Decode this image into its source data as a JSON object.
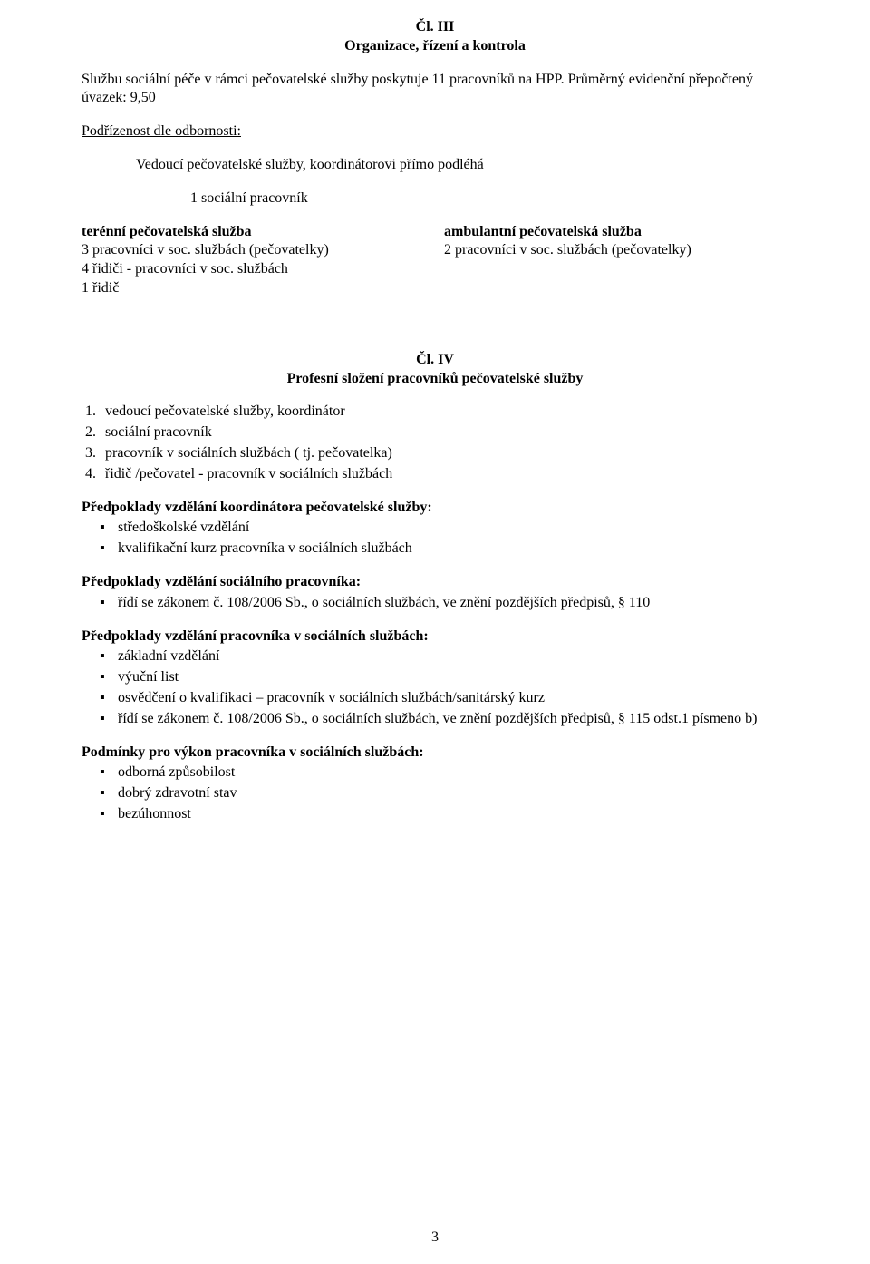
{
  "article3": {
    "label": "Čl. III",
    "title": "Organizace, řízení a kontrola",
    "intro": "Službu sociální péče v rámci pečovatelské služby poskytuje 11 pracovníků na HPP. Průměrný evidenční přepočtený úvazek: 9,50",
    "sub_heading": "Podřízenost dle odbornosti:",
    "lead_line": "Vedoucí pečovatelské služby, koordinátorovi přímo podléhá",
    "single_worker": "1 sociální pracovník",
    "left": {
      "heading": "terénní pečovatelská služba",
      "lines": [
        "3 pracovníci v soc. službách (pečovatelky)",
        "4 řidiči  - pracovníci  v soc. službách",
        "1 řidič"
      ]
    },
    "right": {
      "heading": "ambulantní pečovatelská služba",
      "lines": [
        "2 pracovníci v soc. službách (pečovatelky)"
      ]
    }
  },
  "article4": {
    "label": "Čl. IV",
    "title": "Profesní složení pracovníků pečovatelské služby",
    "numbered": [
      "vedoucí pečovatelské služby, koordinátor",
      "sociální pracovník",
      "pracovník v sociálních službách ( tj. pečovatelka)",
      "řidič /pečovatel - pracovník v sociálních službách"
    ],
    "sec1": {
      "title": "Předpoklady vzdělání koordinátora pečovatelské služby:",
      "items": [
        "středoškolské vzdělání",
        "kvalifikační kurz pracovníka v sociálních službách"
      ]
    },
    "sec2": {
      "title": "Předpoklady vzdělání sociálního pracovníka:",
      "items": [
        "řídí se zákonem č. 108/2006 Sb., o sociálních službách, ve znění pozdějších předpisů, § 110"
      ]
    },
    "sec3": {
      "title": "Předpoklady vzdělání pracovníka v sociálních službách:",
      "items": [
        "základní vzdělání",
        "výuční list",
        "osvědčení o kvalifikaci – pracovník v sociálních službách/sanitárský kurz",
        "řídí se zákonem č. 108/2006 Sb., o sociálních službách, ve znění pozdějších předpisů, § 115 odst.1 písmeno b)"
      ]
    },
    "sec4": {
      "title": "Podmínky pro výkon pracovníka v sociálních službách:",
      "items": [
        "odborná způsobilost",
        "dobrý zdravotní stav",
        "bezúhonnost"
      ]
    }
  },
  "page_number": "3"
}
